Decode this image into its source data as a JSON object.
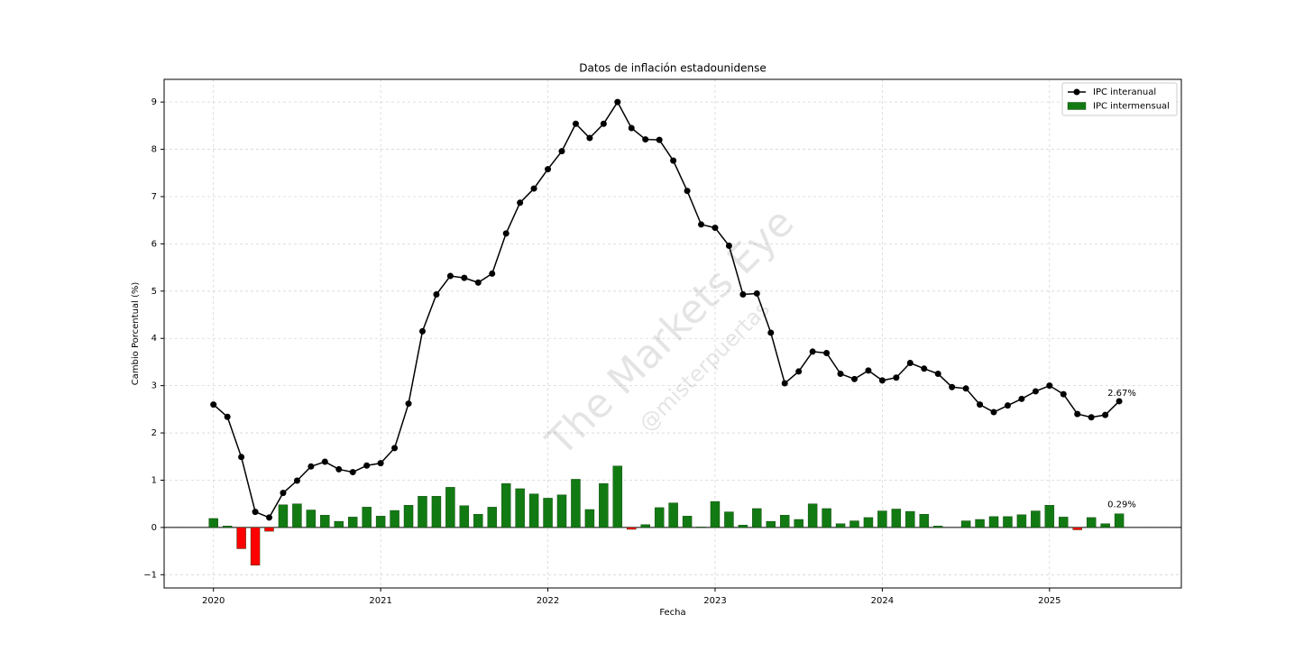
{
  "chart_data": {
    "type": "combo",
    "title": "Datos de inflación estadounidense",
    "x_label": "Fecha",
    "y_label": "Cambio Porcentual (%)",
    "watermark": [
      "The Markets Eye",
      "@misterpuertas"
    ],
    "x": [
      "2020-01",
      "2020-02",
      "2020-03",
      "2020-04",
      "2020-05",
      "2020-06",
      "2020-07",
      "2020-08",
      "2020-09",
      "2020-10",
      "2020-11",
      "2020-12",
      "2021-01",
      "2021-02",
      "2021-03",
      "2021-04",
      "2021-05",
      "2021-06",
      "2021-07",
      "2021-08",
      "2021-09",
      "2021-10",
      "2021-11",
      "2021-12",
      "2022-01",
      "2022-02",
      "2022-03",
      "2022-04",
      "2022-05",
      "2022-06",
      "2022-07",
      "2022-08",
      "2022-09",
      "2022-10",
      "2022-11",
      "2022-12",
      "2023-01",
      "2023-02",
      "2023-03",
      "2023-04",
      "2023-05",
      "2023-06",
      "2023-07",
      "2023-08",
      "2023-09",
      "2023-10",
      "2023-11",
      "2023-12",
      "2024-01",
      "2024-02",
      "2024-03",
      "2024-04",
      "2024-05",
      "2024-06",
      "2024-07",
      "2024-08",
      "2024-09",
      "2024-10",
      "2024-11",
      "2024-12",
      "2025-01",
      "2025-02",
      "2025-03",
      "2025-04",
      "2025-05",
      "2025-06"
    ],
    "series": [
      {
        "name": "IPC interanual",
        "type": "line",
        "color": "#000000",
        "values": [
          2.6,
          2.34,
          1.49,
          0.33,
          0.21,
          0.73,
          0.99,
          1.29,
          1.39,
          1.23,
          1.17,
          1.31,
          1.36,
          1.68,
          2.62,
          4.15,
          4.93,
          5.32,
          5.28,
          5.18,
          5.37,
          6.22,
          6.87,
          7.17,
          7.58,
          7.96,
          8.54,
          8.24,
          8.54,
          9.0,
          8.45,
          8.21,
          8.2,
          7.76,
          7.12,
          6.41,
          6.34,
          5.96,
          4.93,
          4.95,
          4.12,
          3.05,
          3.3,
          3.72,
          3.69,
          3.25,
          3.14,
          3.32,
          3.11,
          3.17,
          3.48,
          3.36,
          3.25,
          2.97,
          2.94,
          2.6,
          2.44,
          2.58,
          2.72,
          2.88,
          3.0,
          2.82,
          2.4,
          2.33,
          2.38,
          2.67
        ],
        "value_labels": [
          null,
          null,
          null,
          null,
          null,
          null,
          null,
          null,
          null,
          null,
          null,
          null,
          null,
          null,
          null,
          null,
          null,
          null,
          null,
          null,
          null,
          null,
          null,
          null,
          null,
          null,
          null,
          null,
          null,
          null,
          null,
          null,
          null,
          null,
          null,
          null,
          null,
          null,
          null,
          null,
          null,
          null,
          null,
          null,
          null,
          null,
          null,
          null,
          null,
          null,
          null,
          null,
          null,
          null,
          null,
          null,
          null,
          null,
          null,
          null,
          null,
          null,
          null,
          null,
          null,
          "2.67%"
        ]
      },
      {
        "name": "IPC intermensual",
        "type": "bar",
        "color": "#127a12",
        "negative_color": "#ff0000",
        "values": [
          0.19,
          0.03,
          -0.45,
          -0.8,
          -0.08,
          0.48,
          0.5,
          0.37,
          0.26,
          0.13,
          0.22,
          0.43,
          0.24,
          0.36,
          0.47,
          0.66,
          0.66,
          0.85,
          0.46,
          0.28,
          0.43,
          0.93,
          0.82,
          0.71,
          0.62,
          0.69,
          1.02,
          0.38,
          0.93,
          1.3,
          -0.04,
          0.06,
          0.42,
          0.52,
          0.24,
          0.01,
          0.55,
          0.33,
          0.05,
          0.4,
          0.13,
          0.26,
          0.17,
          0.5,
          0.4,
          0.08,
          0.14,
          0.21,
          0.35,
          0.39,
          0.34,
          0.28,
          0.03,
          0.0,
          0.14,
          0.17,
          0.23,
          0.23,
          0.27,
          0.35,
          0.47,
          0.22,
          -0.05,
          0.21,
          0.08,
          0.29
        ],
        "value_labels": [
          null,
          null,
          null,
          null,
          null,
          null,
          null,
          null,
          null,
          null,
          null,
          null,
          null,
          null,
          null,
          null,
          null,
          null,
          null,
          null,
          null,
          null,
          null,
          null,
          null,
          null,
          null,
          null,
          null,
          null,
          null,
          null,
          null,
          null,
          null,
          null,
          null,
          null,
          null,
          null,
          null,
          null,
          null,
          null,
          null,
          null,
          null,
          null,
          null,
          null,
          null,
          null,
          null,
          null,
          null,
          null,
          null,
          null,
          null,
          null,
          null,
          null,
          null,
          null,
          null,
          "0.29%"
        ]
      }
    ],
    "xlim": [
      "2019-09-15",
      "2025-10-15"
    ],
    "xticks": [
      {
        "value": "2020-01",
        "label": "2020"
      },
      {
        "value": "2021-01",
        "label": "2021"
      },
      {
        "value": "2022-01",
        "label": "2022"
      },
      {
        "value": "2023-01",
        "label": "2023"
      },
      {
        "value": "2024-01",
        "label": "2024"
      },
      {
        "value": "2025-01",
        "label": "2025"
      }
    ],
    "ylim": [
      -1.28,
      9.48
    ],
    "yticks": [
      {
        "value": -1,
        "label": "−1"
      },
      0,
      1,
      2,
      3,
      4,
      5,
      6,
      7,
      8,
      9
    ],
    "grid": true,
    "legend": "upper right"
  }
}
